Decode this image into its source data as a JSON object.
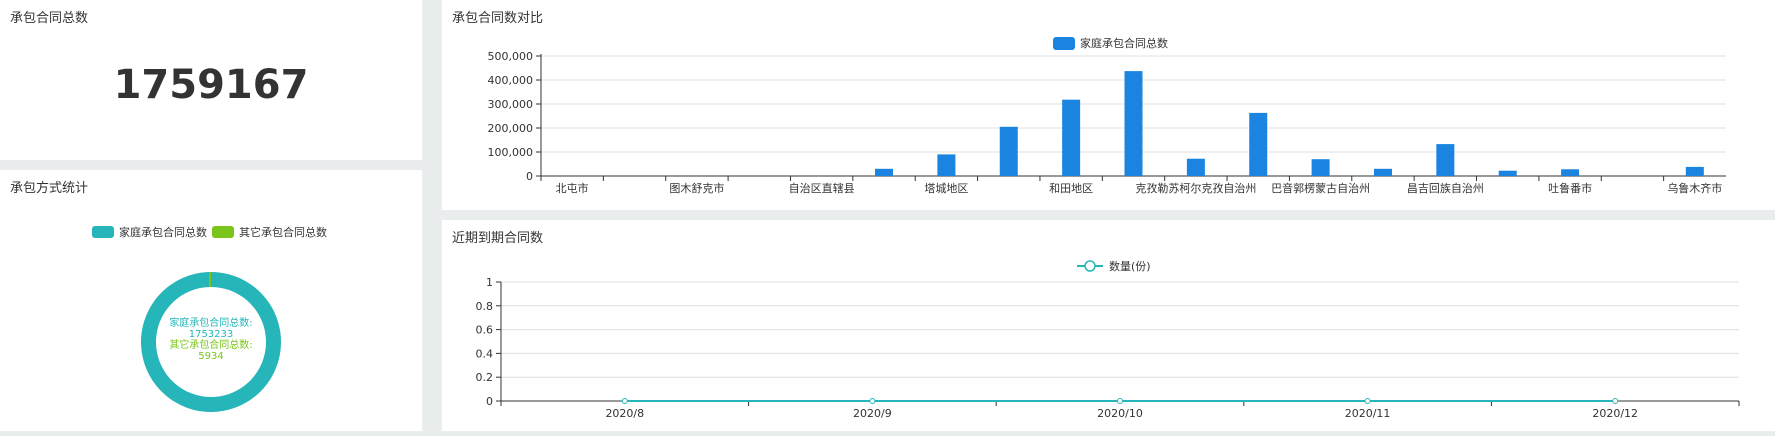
{
  "total_panel": {
    "title": "承包合同总数",
    "value": "1759167"
  },
  "pie_panel": {
    "title": "承包方式统计",
    "legend": [
      {
        "label": "家庭承包合同总数",
        "color": "#26b5b8"
      },
      {
        "label": "其它承包合同总数",
        "color": "#79c51a"
      }
    ],
    "center_lines": [
      {
        "text": "家庭承包合同总数:",
        "color": "#26b5b8"
      },
      {
        "text": "1753233",
        "color": "#26b5b8"
      },
      {
        "text": "其它承包合同总数:",
        "color": "#79c51a"
      },
      {
        "text": "5934",
        "color": "#79c51a"
      }
    ]
  },
  "bar_panel": {
    "title": "承包合同数对比"
  },
  "line_panel": {
    "title": "近期到期合同数"
  },
  "chart_data": [
    {
      "type": "pie",
      "slices": [
        {
          "name": "家庭承包合同总数",
          "value": 1753233,
          "color": "#26b5b8"
        },
        {
          "name": "其它承包合同总数",
          "value": 5934,
          "color": "#79c51a"
        }
      ]
    },
    {
      "type": "bar",
      "legend": "家庭承包合同总数",
      "color": "#1a84e0",
      "categories": [
        "北屯市",
        "",
        "图木舒克市",
        "",
        "自治区直辖县",
        "",
        "塔城地区",
        "",
        "和田地区",
        "",
        "克孜勒苏柯尔克孜自治州",
        "",
        "巴音郭楞蒙古自治州",
        "",
        "昌吉回族自治州",
        "",
        "吐鲁番市",
        "",
        "乌鲁木齐市"
      ],
      "values": [
        0,
        0,
        0,
        0,
        0,
        30000,
        90000,
        205000,
        318000,
        437000,
        72000,
        263000,
        70000,
        30000,
        133000,
        22000,
        28000,
        0,
        38000
      ],
      "yticks": [
        "0",
        "100,000",
        "200,000",
        "300,000",
        "400,000",
        "500,000"
      ],
      "ylim": [
        0,
        500000
      ]
    },
    {
      "type": "line",
      "legend": "数量(份)",
      "color": "#26b5b8",
      "categories": [
        "2020/8",
        "2020/9",
        "2020/10",
        "2020/11",
        "2020/12"
      ],
      "values": [
        0,
        0,
        0,
        0,
        0
      ],
      "yticks": [
        "0",
        "0.2",
        "0.4",
        "0.6",
        "0.8",
        "1"
      ],
      "ylim": [
        0,
        1
      ]
    }
  ]
}
